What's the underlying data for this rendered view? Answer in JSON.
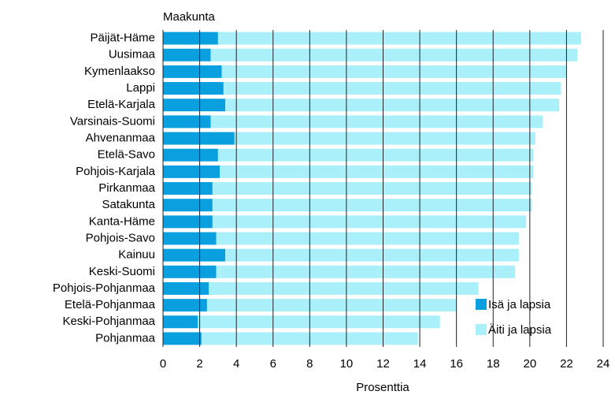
{
  "chart_data": {
    "type": "stacked-barh",
    "title": "Maakunta",
    "xlabel": "Prosenttia",
    "categories": [
      "Päijät-Häme",
      "Uusimaa",
      "Kymenlaakso",
      "Lappi",
      "Etelä-Karjala",
      "Varsinais-Suomi",
      "Ahvenanmaa",
      "Etelä-Savo",
      "Pohjois-Karjala",
      "Pirkanmaa",
      "Satakunta",
      "Kanta-Häme",
      "Pohjois-Savo",
      "Kainuu",
      "Keski-Suomi",
      "Pohjois-Pohjanmaa",
      "Etelä-Pohjanmaa",
      "Keski-Pohjanmaa",
      "Pohjanmaa"
    ],
    "series": [
      {
        "name": "Isä ja lapsia",
        "color": "#0aa0e0",
        "values": [
          3.0,
          2.6,
          3.2,
          3.3,
          3.4,
          2.6,
          3.9,
          3.0,
          3.1,
          2.7,
          2.7,
          2.7,
          2.9,
          3.4,
          2.9,
          2.5,
          2.4,
          1.9,
          2.1
        ]
      },
      {
        "name": "Äiti ja lapsia",
        "color": "#aaf0fa",
        "values": [
          19.8,
          20.0,
          18.8,
          18.4,
          18.2,
          18.1,
          16.4,
          17.2,
          17.1,
          17.4,
          17.4,
          17.1,
          16.5,
          16.0,
          16.3,
          14.7,
          13.6,
          13.2,
          11.8
        ]
      }
    ],
    "xlim": [
      0,
      24
    ],
    "xticks": [
      0,
      2,
      4,
      6,
      8,
      10,
      12,
      14,
      16,
      18,
      20,
      22,
      24
    ],
    "grid": true,
    "legend": "lower-right"
  }
}
